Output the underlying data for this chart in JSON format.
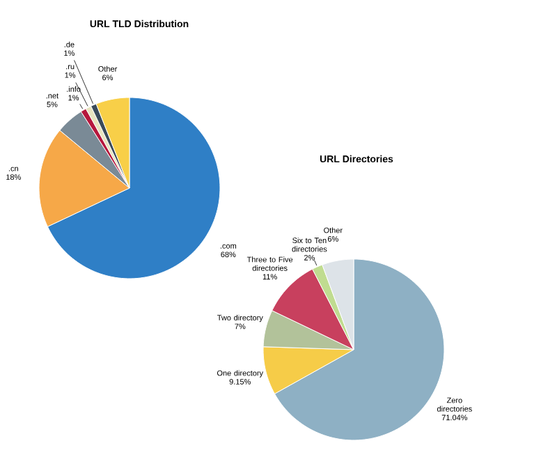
{
  "chart_data": [
    {
      "type": "pie",
      "title": "URL TLD Distribution",
      "categories": [
        ".com",
        ".cn",
        ".net",
        ".info",
        ".ru",
        ".de",
        "Other"
      ],
      "values": [
        68,
        18,
        5,
        1,
        1,
        1,
        6
      ],
      "value_labels": [
        "68%",
        "18%",
        "5%",
        "1%",
        "1%",
        "1%",
        "6%"
      ],
      "colors": [
        "#2f7fc6",
        "#f6a848",
        "#7a8a96",
        "#b5173d",
        "#e8e4c0",
        "#3a4a5a",
        "#f8cf48"
      ]
    },
    {
      "type": "pie",
      "title": "URL Directories",
      "categories": [
        "Zero directories",
        "One directory",
        "Two directory",
        "Three to Five directories",
        "Six to Ten directories",
        "Other"
      ],
      "values": [
        71.04,
        9.15,
        7,
        11,
        2,
        6
      ],
      "value_labels": [
        "71.04%",
        "9.15%",
        "7%",
        "11%",
        "2%",
        "6%"
      ],
      "colors": [
        "#8eb0c4",
        "#f6cc48",
        "#b2c29a",
        "#c8405e",
        "#c0dc90",
        "#dde3e8"
      ]
    }
  ]
}
